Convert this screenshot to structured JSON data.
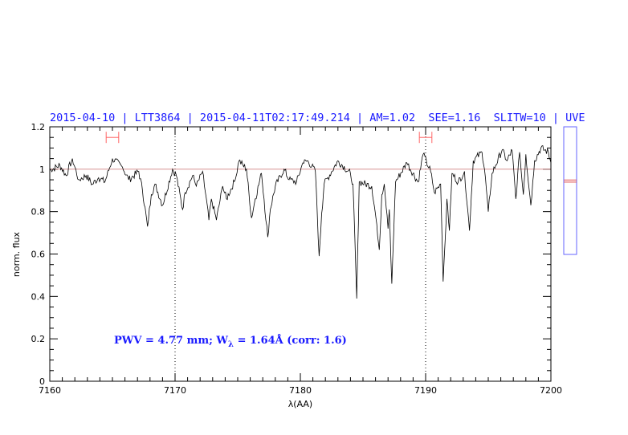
{
  "chart_data": {
    "type": "line",
    "title": "2015-04-10 | LTT3864 | 2015-04-11T02:17:49.214 | AM=1.02  SEE=1.16  SLITW=10 | UVE",
    "xlabel": "λ(AA)",
    "ylabel": "norm. flux",
    "xlim": [
      7160,
      7200
    ],
    "ylim": [
      0,
      1.2
    ],
    "x_ticks": [
      "7160",
      "7170",
      "7180",
      "7190",
      "7200"
    ],
    "y_ticks": [
      "0",
      "0.2",
      "0.4",
      "0.6",
      "0.8",
      "1",
      "1.2"
    ],
    "reference_line": 1.0,
    "dotted_lines_x": [
      7170,
      7190
    ],
    "annotation": {
      "prefix": "PWV = 4.77 mm; W",
      "sub": "λ",
      "suffix": " = 1.64Å (corr: 1.6)"
    },
    "interval_markers": [
      {
        "from": 7164.5,
        "to": 7165.5,
        "y": 1.15
      },
      {
        "from": 7189.5,
        "to": 7190.5,
        "y": 1.15
      }
    ],
    "side_panel": {
      "ylim": [
        0.6,
        1.2
      ],
      "lines": [
        0.95,
        0.94
      ]
    },
    "series": [
      {
        "name": "spectrum",
        "color": "#000000",
        "points": [
          [
            7160.0,
            1.0
          ],
          [
            7160.1,
            0.995
          ],
          [
            7160.8,
            1.02
          ],
          [
            7161.3,
            0.97
          ],
          [
            7161.8,
            1.05
          ],
          [
            7162.3,
            0.95
          ],
          [
            7162.9,
            0.97
          ],
          [
            7163.4,
            0.93
          ],
          [
            7163.9,
            0.96
          ],
          [
            7164.4,
            0.94
          ],
          [
            7165.0,
            1.05
          ],
          [
            7165.8,
            1.01
          ],
          [
            7166.3,
            0.95
          ],
          [
            7167.1,
            0.99
          ],
          [
            7167.4,
            0.9
          ],
          [
            7167.8,
            0.73
          ],
          [
            7168.1,
            0.88
          ],
          [
            7168.4,
            0.93
          ],
          [
            7169.0,
            0.83
          ],
          [
            7169.8,
            1.0
          ],
          [
            7170.1,
            0.97
          ],
          [
            7170.6,
            0.81
          ],
          [
            7170.8,
            0.89
          ],
          [
            7171.4,
            0.97
          ],
          [
            7171.7,
            0.92
          ],
          [
            7172.2,
            0.99
          ],
          [
            7172.7,
            0.76
          ],
          [
            7172.9,
            0.86
          ],
          [
            7173.3,
            0.76
          ],
          [
            7173.8,
            0.92
          ],
          [
            7174.1,
            0.86
          ],
          [
            7174.8,
            0.95
          ],
          [
            7175.1,
            1.04
          ],
          [
            7175.7,
            1.0
          ],
          [
            7176.1,
            0.77
          ],
          [
            7176.4,
            0.86
          ],
          [
            7176.9,
            0.98
          ],
          [
            7177.1,
            0.86
          ],
          [
            7177.4,
            0.68
          ],
          [
            7177.6,
            0.81
          ],
          [
            7178.0,
            0.92
          ],
          [
            7178.7,
            1.0
          ],
          [
            7179.1,
            0.95
          ],
          [
            7179.7,
            0.94
          ],
          [
            7180.2,
            1.03
          ],
          [
            7180.6,
            1.04
          ],
          [
            7181.2,
            0.99
          ],
          [
            7181.5,
            0.59
          ],
          [
            7181.7,
            0.79
          ],
          [
            7181.9,
            0.93
          ],
          [
            7183.0,
            1.04
          ],
          [
            7184.0,
            0.98
          ],
          [
            7184.2,
            0.93
          ],
          [
            7184.5,
            0.39
          ],
          [
            7184.7,
            0.94
          ],
          [
            7185.7,
            0.92
          ],
          [
            7186.1,
            0.74
          ],
          [
            7186.3,
            0.62
          ],
          [
            7186.5,
            0.88
          ],
          [
            7186.7,
            0.93
          ],
          [
            7187.0,
            0.72
          ],
          [
            7187.1,
            0.81
          ],
          [
            7187.3,
            0.46
          ],
          [
            7187.6,
            0.94
          ],
          [
            7188.5,
            1.03
          ],
          [
            7189.4,
            0.94
          ],
          [
            7189.8,
            1.07
          ],
          [
            7190.4,
            0.99
          ],
          [
            7190.7,
            0.89
          ],
          [
            7191.2,
            0.93
          ],
          [
            7191.4,
            0.47
          ],
          [
            7191.7,
            0.86
          ],
          [
            7191.9,
            0.71
          ],
          [
            7192.1,
            0.98
          ],
          [
            7192.6,
            0.94
          ],
          [
            7193.1,
            0.99
          ],
          [
            7193.5,
            0.71
          ],
          [
            7193.8,
            1.04
          ],
          [
            7194.5,
            1.08
          ],
          [
            7194.7,
            1.0
          ],
          [
            7195.0,
            0.8
          ],
          [
            7195.3,
            0.98
          ],
          [
            7195.6,
            1.02
          ],
          [
            7196.1,
            1.09
          ],
          [
            7196.5,
            1.04
          ],
          [
            7196.9,
            1.09
          ],
          [
            7197.2,
            0.86
          ],
          [
            7197.5,
            1.08
          ],
          [
            7197.8,
            0.88
          ],
          [
            7198.0,
            1.07
          ],
          [
            7198.4,
            0.83
          ],
          [
            7198.7,
            1.04
          ],
          [
            7199.2,
            1.1
          ],
          [
            7199.8,
            1.08
          ],
          [
            7200.0,
            1.03
          ]
        ]
      }
    ],
    "colors": {
      "title": "#1a1aff",
      "markers": "#ff6666",
      "reference": "#d08080",
      "side_box": "#6666ff",
      "side_lines": "#e05050"
    }
  }
}
